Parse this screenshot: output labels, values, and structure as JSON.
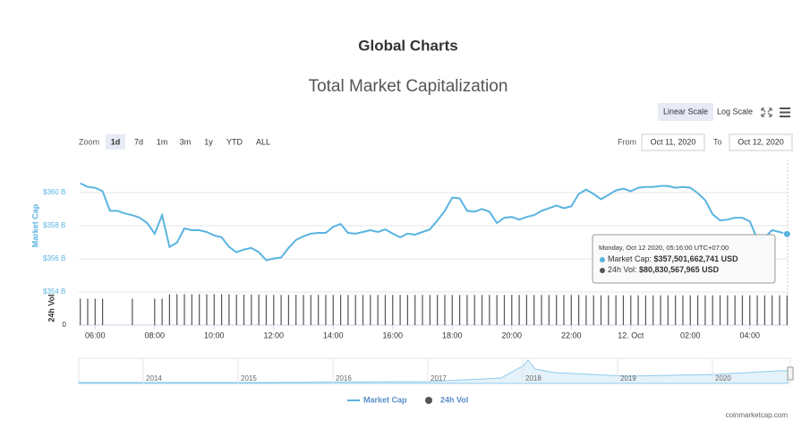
{
  "page_title": "Global Charts",
  "controls": {
    "scales": [
      "Linear Scale",
      "Log Scale"
    ],
    "zoom_label": "Zoom",
    "zoom": [
      "1d",
      "7d",
      "1m",
      "3m",
      "1y",
      "YTD",
      "ALL"
    ],
    "from_label": "From",
    "from": "Oct 11, 2020",
    "to_label": "To",
    "to": "Oct 12, 2020"
  },
  "chart_data": {
    "type": "line",
    "title": "Total Market Capitalization",
    "y_label": "Market Cap",
    "y2_label": "24h Vol",
    "x": [
      5.5,
      5.75,
      6,
      6.25,
      6.5,
      6.75,
      7,
      7.25,
      7.5,
      7.75,
      8,
      8.25,
      8.5,
      8.75,
      9,
      9.25,
      9.5,
      9.75,
      10,
      10.25,
      10.5,
      10.75,
      11,
      11.25,
      11.5,
      11.75,
      12,
      12.25,
      12.5,
      12.75,
      13,
      13.25,
      13.5,
      13.75,
      14,
      14.25,
      14.5,
      14.75,
      15,
      15.25,
      15.5,
      15.75,
      16,
      16.25,
      16.5,
      16.75,
      17,
      17.25,
      17.5,
      17.75,
      18,
      18.25,
      18.5,
      18.75,
      19,
      19.25,
      19.5,
      19.75,
      20,
      20.25,
      20.5,
      20.75,
      21,
      21.25,
      21.5,
      21.75,
      22,
      22.25,
      22.5,
      22.75,
      23,
      23.25,
      23.5,
      23.75,
      24,
      24.25,
      24.5,
      24.75,
      25,
      25.25,
      25.5,
      25.75,
      26,
      26.25,
      26.5,
      26.75,
      27,
      27.25,
      27.5,
      27.75,
      28,
      28.25,
      28.5,
      28.75,
      29,
      29.25
    ],
    "series": [
      {
        "name": "Market Cap",
        "color": "#5ab4e0",
        "values": [
          360.56,
          360.34,
          360.29,
          360.08,
          358.9,
          358.9,
          358.74,
          358.64,
          358.48,
          358.16,
          357.52,
          358.64,
          356.72,
          356.98,
          357.84,
          357.73,
          357.73,
          357.62,
          357.41,
          357.3,
          356.72,
          356.4,
          356.56,
          356.66,
          356.4,
          355.92,
          356.02,
          356.08,
          356.66,
          357.14,
          357.36,
          357.52,
          357.57,
          357.57,
          357.94,
          358.1,
          357.57,
          357.52,
          357.62,
          357.73,
          357.62,
          357.78,
          357.52,
          357.3,
          357.52,
          357.46,
          357.62,
          357.78,
          358.32,
          358.9,
          359.7,
          359.65,
          358.9,
          358.85,
          359.01,
          358.85,
          358.16,
          358.48,
          358.53,
          358.37,
          358.53,
          358.64,
          358.9,
          359.06,
          359.22,
          359.06,
          359.17,
          359.92,
          360.18,
          359.92,
          359.6,
          359.86,
          360.13,
          360.24,
          360.08,
          360.29,
          360.34,
          360.34,
          360.4,
          360.4,
          360.29,
          360.34,
          360.29,
          359.97,
          359.54,
          358.69,
          358.32,
          358.37,
          358.48,
          358.48,
          358.26,
          357.2,
          357.3,
          357.73,
          357.62,
          357.5
        ]
      },
      {
        "name": "24h Vol",
        "color": "#555555",
        "axis": "y2",
        "values": [
          72,
          72,
          72,
          72,
          null,
          null,
          null,
          72,
          null,
          null,
          72,
          72,
          84,
          84,
          84,
          84,
          84,
          84,
          84,
          84,
          84,
          83,
          83,
          83,
          83,
          82,
          82,
          82,
          82,
          82,
          82,
          82,
          82,
          82,
          82,
          82,
          82,
          82,
          82,
          82,
          82,
          82,
          82,
          82,
          82,
          82,
          82,
          82,
          82,
          82,
          82,
          82,
          82,
          82,
          82,
          82,
          82,
          82,
          82,
          82,
          82,
          82,
          82,
          82,
          82,
          82,
          82,
          82,
          81,
          81,
          81,
          81,
          81,
          81,
          81,
          81,
          81,
          81,
          81,
          81,
          81,
          81,
          81,
          81,
          81,
          81,
          81,
          81,
          81,
          81,
          81,
          81,
          81,
          81,
          81,
          80.83
        ]
      }
    ],
    "xlim": [
      5.45,
      29.27
    ],
    "xticks": [
      {
        "value": 6,
        "label": "06:00"
      },
      {
        "value": 8,
        "label": "08:00"
      },
      {
        "value": 10,
        "label": "10:00"
      },
      {
        "value": 12,
        "label": "12:00"
      },
      {
        "value": 14,
        "label": "14:00"
      },
      {
        "value": 16,
        "label": "16:00"
      },
      {
        "value": 18,
        "label": "18:00"
      },
      {
        "value": 20,
        "label": "20:00"
      },
      {
        "value": 22,
        "label": "22:00"
      },
      {
        "value": 24,
        "label": "12. Oct"
      },
      {
        "value": 26,
        "label": "02:00"
      },
      {
        "value": 28,
        "label": "04:00"
      }
    ],
    "ylim": [
      354,
      362
    ],
    "yticks": [
      {
        "value": 354,
        "label": "$354 B"
      },
      {
        "value": 356,
        "label": "$356 B"
      },
      {
        "value": 358,
        "label": "$358 B"
      },
      {
        "value": 360,
        "label": "$360 B"
      }
    ],
    "y2lim": [
      0,
      90
    ],
    "y2ticks": [
      0
    ],
    "grid": true,
    "legend": "bottom",
    "tooltip": {
      "date": "Monday, Oct 12 2020, 05:16:00 UTC+07:00",
      "cap_label": "Market Cap: ",
      "cap": "$357,501,662,741 USD",
      "vol_label": "24h Vol: ",
      "vol": "$80,830,567,965 USD"
    },
    "navigator": [
      "2014",
      "2015",
      "2016",
      "2017",
      "2018",
      "2019",
      "2020"
    ],
    "credit": "coinmarketcap.com"
  }
}
